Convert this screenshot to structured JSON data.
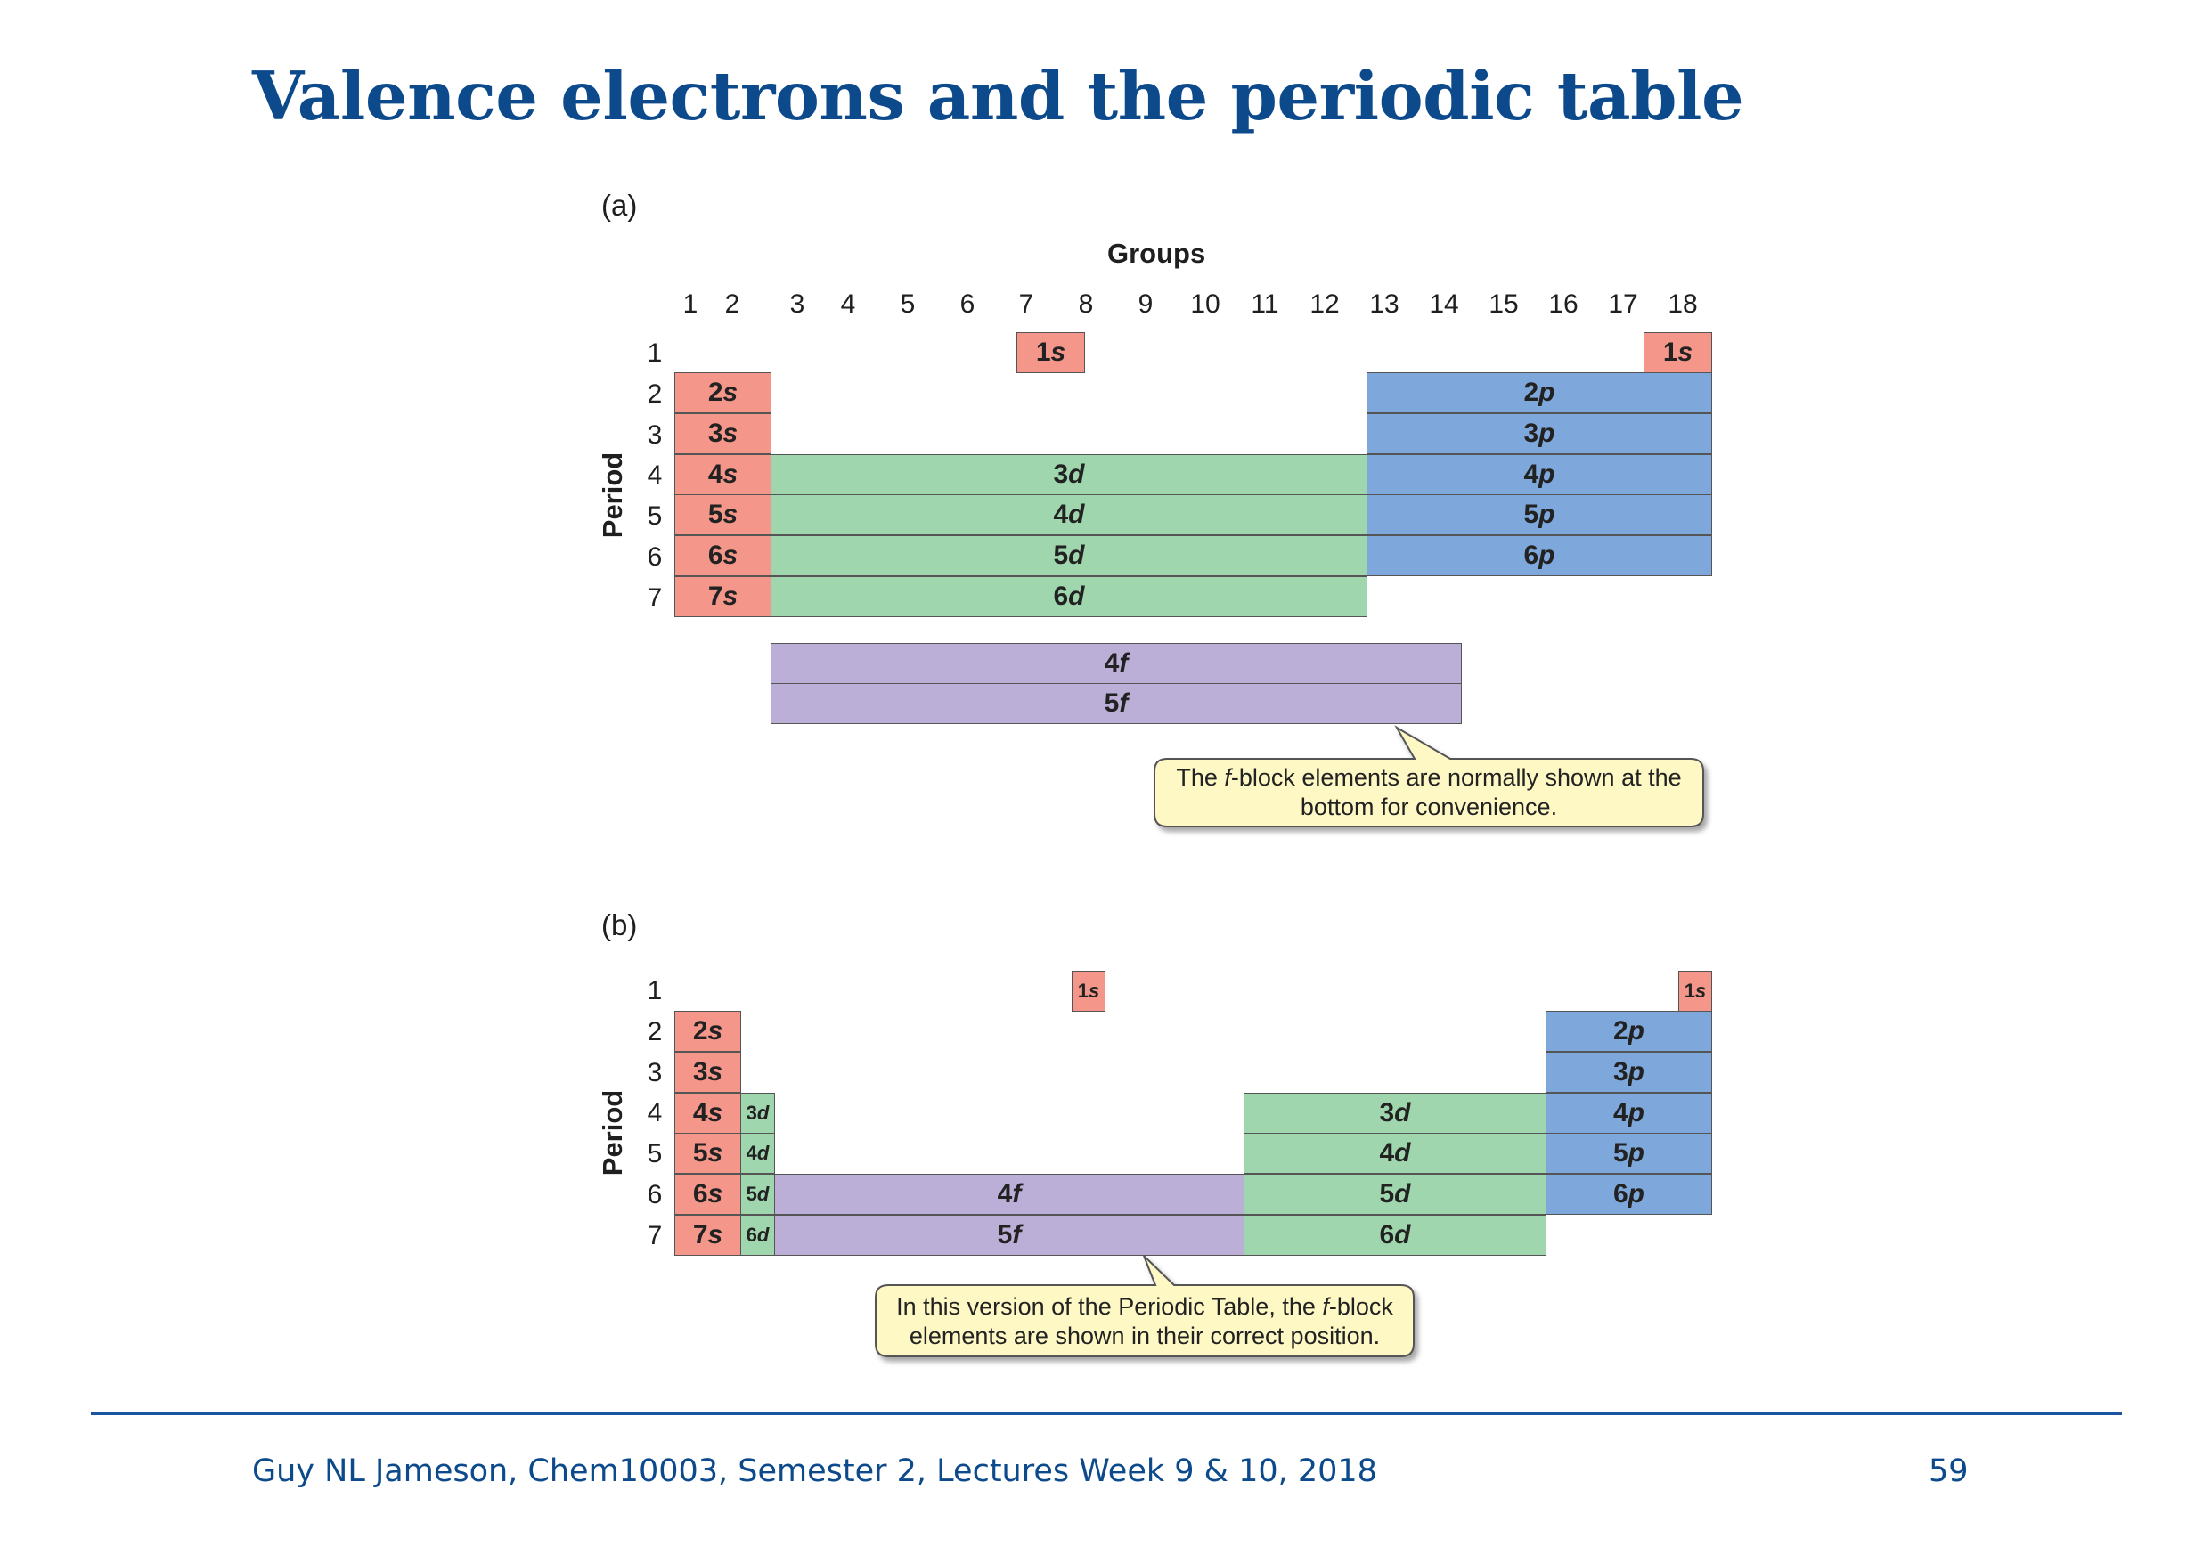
{
  "slide": {
    "title": "Valence electrons and the periodic table",
    "footer_left": "Guy NL Jameson, Chem10003, Semester 2, Lectures Week 9 & 10, 2018",
    "page_number": "59"
  },
  "colors": {
    "title": "#0d4a8c",
    "s_block": "#f4978a",
    "p_block": "#7ea8db",
    "d_block": "#9fd6ad",
    "f_block": "#bbaed7",
    "callout_fill": "#fef8c4"
  },
  "panel_a": {
    "label": "(a)",
    "groups_title": "Groups",
    "period_axis": "Period",
    "group_numbers": [
      "1",
      "2",
      "3",
      "4",
      "5",
      "6",
      "7",
      "8",
      "9",
      "10",
      "11",
      "12",
      "13",
      "14",
      "15",
      "16",
      "17",
      "18"
    ],
    "period_numbers": [
      "1",
      "2",
      "3",
      "4",
      "5",
      "6",
      "7"
    ],
    "s_block": {
      "h1_left": "1s",
      "he": "1s",
      "rows": [
        "2s",
        "3s",
        "4s",
        "5s",
        "6s",
        "7s"
      ]
    },
    "d_block": {
      "rows": [
        "3d",
        "4d",
        "5d",
        "6d"
      ]
    },
    "p_block": {
      "rows": [
        "2p",
        "3p",
        "4p",
        "5p",
        "6p"
      ]
    },
    "f_block": {
      "rows": [
        "4f",
        "5f"
      ]
    },
    "callout": {
      "pre": "The ",
      "em": "f",
      "post": "-block elements are normally shown at the",
      "line2": "bottom for convenience."
    }
  },
  "panel_b": {
    "label": "(b)",
    "period_axis": "Period",
    "period_numbers": [
      "1",
      "2",
      "3",
      "4",
      "5",
      "6",
      "7"
    ],
    "s_block": {
      "h1": "1s",
      "he": "1s",
      "rows": [
        "2s",
        "3s",
        "4s",
        "5s",
        "6s",
        "7s"
      ]
    },
    "d_first_column": [
      "3d",
      "4d",
      "5d",
      "6d"
    ],
    "f_block": {
      "rows": [
        "4f",
        "5f"
      ]
    },
    "d_block": {
      "rows": [
        "3d",
        "4d",
        "5d",
        "6d"
      ]
    },
    "p_block": {
      "rows": [
        "2p",
        "3p",
        "4p",
        "5p",
        "6p"
      ]
    },
    "callout": {
      "line1_pre": "In this version of the Periodic Table, the ",
      "em": "f",
      "line1_post": "-block",
      "line2": "elements are shown in their correct position."
    }
  }
}
